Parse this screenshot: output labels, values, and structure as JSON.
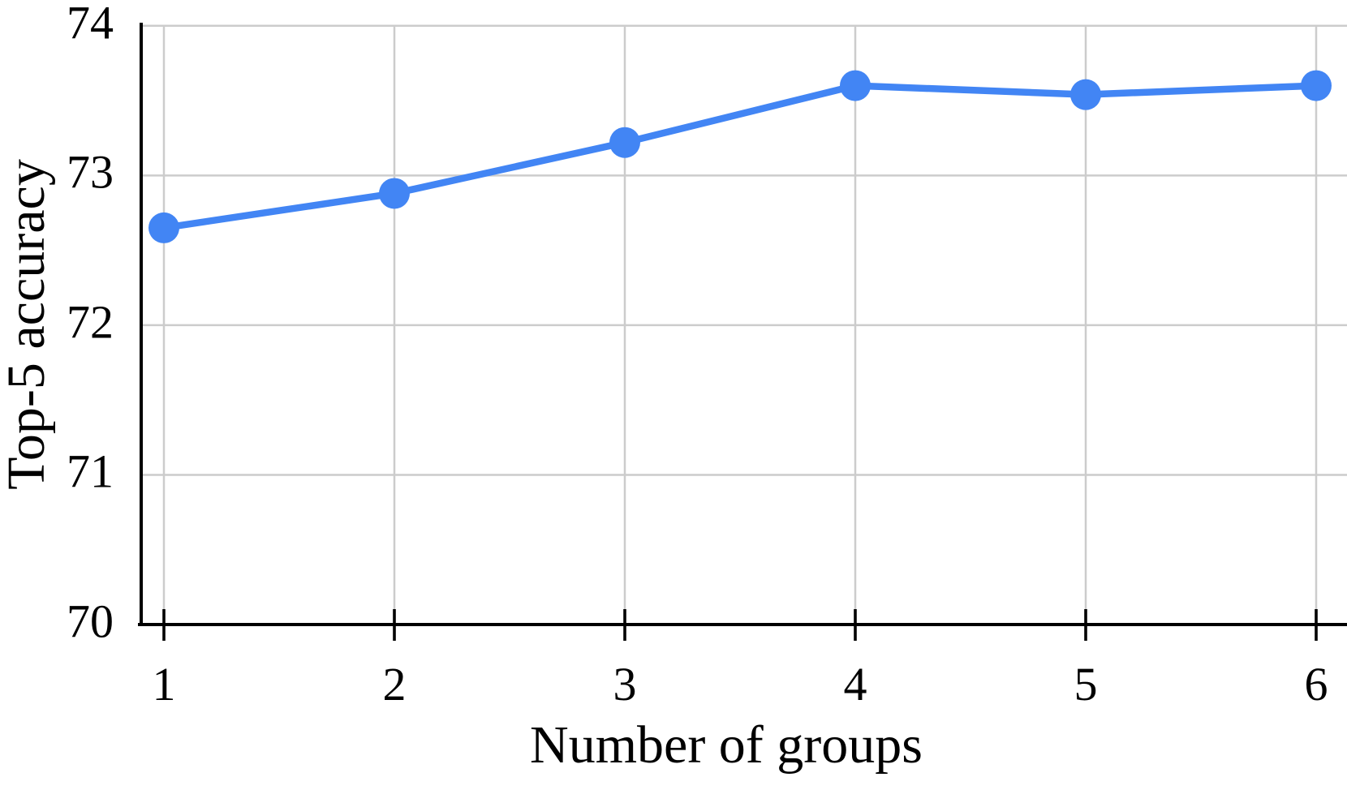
{
  "figure": {
    "background_color": "#ffffff"
  },
  "chart_data": {
    "type": "line",
    "title": "",
    "xlabel": "Number of groups",
    "ylabel": "Top-5 accuracy",
    "x": [
      1,
      2,
      3,
      4,
      5,
      6
    ],
    "y": [
      72.65,
      72.88,
      73.22,
      73.6,
      73.54,
      73.6
    ],
    "x_ticks": [
      "1",
      "2",
      "3",
      "4",
      "5",
      "6"
    ],
    "x_tick_values": [
      1,
      2,
      3,
      4,
      5,
      6
    ],
    "y_ticks": [
      "70",
      "71",
      "72",
      "73",
      "74"
    ],
    "y_tick_values": [
      70,
      71,
      72,
      73,
      74
    ],
    "ylim": [
      70,
      74
    ],
    "xlim": [
      0.89,
      6.13
    ],
    "grid": true,
    "legend": "none",
    "marker_style": "filled-circle",
    "colors": {
      "line": "#4285f4",
      "marker": "#4285f4",
      "gridline": "#cccccc",
      "axis": "#000000",
      "text": "#000000"
    }
  }
}
